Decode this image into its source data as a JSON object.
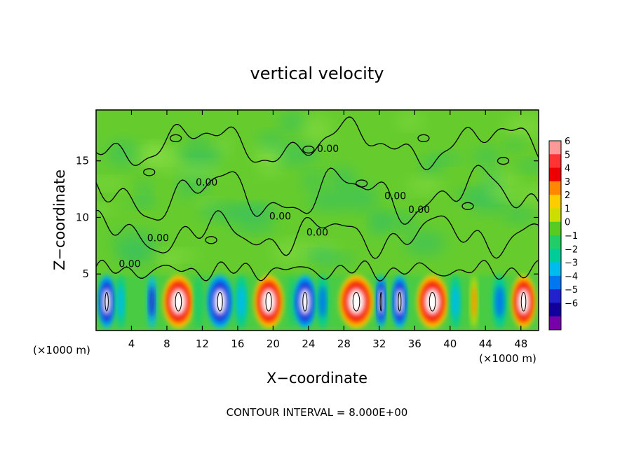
{
  "chart_data": {
    "type": "heatmap",
    "title": "vertical velocity",
    "xlabel": "X−coordinate",
    "ylabel": "Z−coordinate",
    "x_unit": "(×1000 m)",
    "x_unit_repeat": "(×1000 m)",
    "xlim": [
      0,
      50
    ],
    "ylim": [
      0,
      19.5
    ],
    "x_ticks": [
      4,
      8,
      12,
      16,
      20,
      24,
      28,
      32,
      36,
      40,
      44,
      48
    ],
    "y_ticks": [
      5,
      10,
      15
    ],
    "contour_interval_text": "CONTOUR INTERVAL = 8.000E+00",
    "contour_labels": [
      "0.00",
      "0.00",
      "0.00",
      "0.00",
      "0.00",
      "0.00",
      "0.00",
      "0.00"
    ],
    "colorbar": {
      "levels": [
        "6",
        "5",
        "4",
        "3",
        "2",
        "1",
        "0",
        "−1",
        "−2",
        "−3",
        "−4",
        "−5",
        "−6"
      ],
      "colors": [
        "#ff9999",
        "#ff3333",
        "#ee0000",
        "#ff8800",
        "#ffcc00",
        "#ccdd00",
        "#55cc22",
        "#22cc66",
        "#00cc99",
        "#00bbee",
        "#0077ee",
        "#2222cc",
        "#110099",
        "#7700aa"
      ]
    },
    "cells": [
      {
        "x": 1.2,
        "w": 1.8,
        "v": -8
      },
      {
        "x": 2.8,
        "w": 1.0,
        "v": -3
      },
      {
        "x": 4.2,
        "w": 1.4,
        "v": 0
      },
      {
        "x": 6.3,
        "w": 1.0,
        "v": -5
      },
      {
        "x": 9.3,
        "w": 3.4,
        "v": 8
      },
      {
        "x": 11.6,
        "w": 1.0,
        "v": -1
      },
      {
        "x": 14.0,
        "w": 2.8,
        "v": -8
      },
      {
        "x": 16.4,
        "w": 1.4,
        "v": -3
      },
      {
        "x": 19.5,
        "w": 3.2,
        "v": 8
      },
      {
        "x": 22.2,
        "w": 1.0,
        "v": -1
      },
      {
        "x": 23.6,
        "w": 2.4,
        "v": -7
      },
      {
        "x": 25.6,
        "w": 1.3,
        "v": -4
      },
      {
        "x": 29.4,
        "w": 3.8,
        "v": 8
      },
      {
        "x": 32.2,
        "w": 1.0,
        "v": -6
      },
      {
        "x": 34.3,
        "w": 1.6,
        "v": -8
      },
      {
        "x": 38.0,
        "w": 3.4,
        "v": 8
      },
      {
        "x": 40.6,
        "w": 1.2,
        "v": -3
      },
      {
        "x": 42.7,
        "w": 0.8,
        "v": 3
      },
      {
        "x": 45.6,
        "w": 1.6,
        "v": -4
      },
      {
        "x": 48.3,
        "w": 2.6,
        "v": 8
      }
    ]
  }
}
